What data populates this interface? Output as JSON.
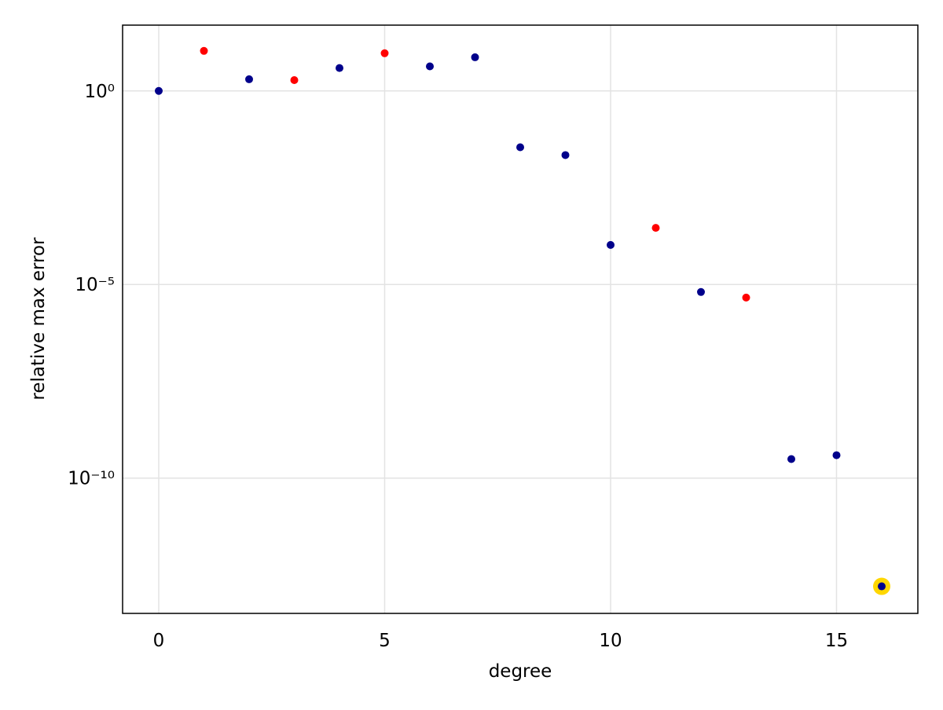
{
  "chart_data": {
    "type": "scatter",
    "x_label": "degree",
    "y_label": "relative max error",
    "log_y": true,
    "grid": true,
    "xlim": [
      -0.8,
      16.8
    ],
    "xticks": [
      0,
      5,
      10,
      15
    ],
    "ylim": [
      3.2e-14,
      50
    ],
    "yticks": [
      {
        "value": 1,
        "label": "10⁰"
      },
      {
        "value": 1e-05,
        "label": "10⁻⁵"
      },
      {
        "value": 1e-10,
        "label": "10⁻¹⁰"
      }
    ],
    "series": [
      {
        "color": "#ffd700",
        "style": "halo",
        "x": [
          16
        ],
        "values": [
          1.6e-13
        ]
      },
      {
        "color": "#00008b",
        "x": [
          0,
          2,
          4,
          6,
          7,
          8,
          9,
          10,
          12,
          14,
          15,
          16
        ],
        "values": [
          1,
          2.0,
          3.9,
          4.3,
          7.4,
          0.035,
          0.022,
          0.000105,
          6.4e-06,
          3.1e-10,
          3.9e-10,
          1.6e-13
        ]
      },
      {
        "color": "#ff0000",
        "x": [
          1,
          3,
          5,
          11,
          13
        ],
        "values": [
          10.8,
          1.9,
          9.4,
          0.00029,
          4.6e-06
        ]
      }
    ]
  }
}
